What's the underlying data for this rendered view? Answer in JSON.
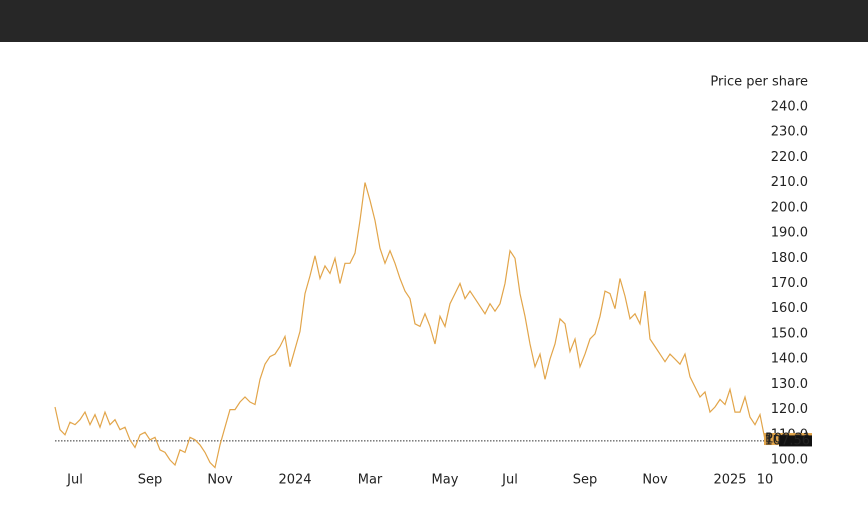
{
  "chart_data": {
    "type": "line",
    "y_axis_label": "Price per share",
    "color": "#e2a54a",
    "categories": [
      null,
      null,
      null,
      null,
      "Jul",
      null,
      null,
      null,
      null,
      null,
      null,
      null,
      null,
      null,
      null,
      null,
      null,
      null,
      null,
      "Sep",
      null,
      null,
      null,
      null,
      null,
      null,
      null,
      null,
      null,
      null,
      null,
      null,
      null,
      "Nov",
      null,
      null,
      null,
      null,
      null,
      null,
      null,
      null,
      null,
      null,
      null,
      null,
      null,
      null,
      "2024",
      null,
      null,
      null,
      null,
      null,
      null,
      null,
      null,
      null,
      null,
      null,
      null,
      null,
      null,
      "Mar",
      null,
      null,
      null,
      null,
      null,
      null,
      null,
      null,
      null,
      null,
      null,
      null,
      null,
      null,
      "May",
      null,
      null,
      null,
      null,
      null,
      null,
      null,
      null,
      null,
      null,
      null,
      null,
      "Jul",
      null,
      null,
      null,
      null,
      null,
      null,
      null,
      null,
      null,
      null,
      null,
      null,
      null,
      null,
      "Sep",
      null,
      null,
      null,
      null,
      null,
      null,
      null,
      null,
      null,
      null,
      null,
      null,
      null,
      "Nov",
      null,
      null,
      null,
      null,
      null,
      null,
      null,
      null,
      null,
      null,
      null,
      null,
      null,
      null,
      "2025",
      null,
      null,
      null,
      null,
      null,
      null,
      "10"
    ],
    "values": [
      121,
      112,
      110,
      115,
      114,
      116,
      119,
      114,
      118,
      113,
      119,
      114,
      116,
      112,
      113,
      108,
      105,
      110,
      111,
      108,
      109,
      104,
      103,
      100,
      98,
      104,
      103,
      109,
      108,
      106,
      103,
      99,
      97,
      106,
      113,
      120,
      120,
      123,
      125,
      123,
      122,
      132,
      138,
      141,
      142,
      145,
      149,
      137,
      144,
      151,
      166,
      173,
      181,
      172,
      177,
      174,
      180,
      170,
      178,
      178,
      182,
      195,
      210,
      203,
      195,
      184,
      178,
      183,
      178,
      172,
      167,
      164,
      154,
      153,
      158,
      153,
      146,
      157,
      153,
      162,
      166,
      170,
      164,
      167,
      164,
      161,
      158,
      162,
      159,
      162,
      170,
      183,
      180,
      166,
      157,
      146,
      137,
      142,
      132,
      140,
      146,
      156,
      154,
      143,
      148,
      137,
      142,
      148,
      150,
      157,
      167,
      166,
      160,
      172,
      165,
      156,
      158,
      154,
      167,
      148,
      145,
      142,
      139,
      142,
      140,
      138,
      142,
      133,
      129,
      125,
      127,
      119,
      121,
      124,
      122,
      128,
      119,
      119,
      125,
      117,
      114,
      118,
      108
    ],
    "ylim": [
      95,
      245
    ],
    "yticks": [
      {
        "value": 100,
        "label": "100.0"
      },
      {
        "value": 110,
        "label": "110.0"
      },
      {
        "value": 120,
        "label": "120.0"
      },
      {
        "value": 130,
        "label": "130.0"
      },
      {
        "value": 140,
        "label": "140.0"
      },
      {
        "value": 150,
        "label": "150.0"
      },
      {
        "value": 160,
        "label": "160.0"
      },
      {
        "value": 170,
        "label": "170.0"
      },
      {
        "value": 180,
        "label": "180.0"
      },
      {
        "value": 190,
        "label": "190.0"
      },
      {
        "value": 200,
        "label": "200.0"
      },
      {
        "value": 210,
        "label": "210.0"
      },
      {
        "value": 220,
        "label": "220.0"
      },
      {
        "value": 230,
        "label": "230.0"
      },
      {
        "value": 240,
        "label": "240.0"
      }
    ],
    "pre_label": "Pre",
    "pre_price": 108.31,
    "reference_price": 107.56
  }
}
